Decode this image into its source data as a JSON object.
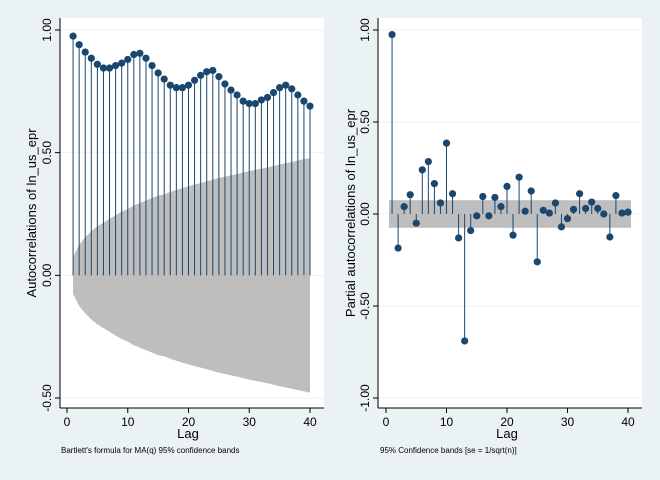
{
  "colors": {
    "background": "#eaf2f3",
    "plot_background": "#ffffff",
    "gridline": "#eaf2f3",
    "confidence_band": "#bebebe",
    "marker": "#1a476f",
    "spike": "#1a476f",
    "axis": "#000000"
  },
  "chart_data": [
    {
      "type": "stem",
      "panel": "left",
      "title": "",
      "xlabel": "Lag",
      "ylabel": "Autocorrelations of ln_us_epr",
      "note": "Bartlett's formula for MA(q) 95% confidence bands",
      "xlim": [
        0,
        41
      ],
      "ylim": [
        -0.53,
        1.04
      ],
      "x_ticks": [
        0,
        10,
        20,
        30,
        40
      ],
      "x_tick_labels": [
        "0",
        "10",
        "20",
        "30",
        "40"
      ],
      "y_ticks": [
        -0.5,
        0,
        0.5,
        1
      ],
      "y_tick_labels": [
        "-0.50",
        "0.00",
        "0.50",
        "1.00"
      ],
      "grid": true,
      "lags": [
        1,
        2,
        3,
        4,
        5,
        6,
        7,
        8,
        9,
        10,
        11,
        12,
        13,
        14,
        15,
        16,
        17,
        18,
        19,
        20,
        21,
        22,
        23,
        24,
        25,
        26,
        27,
        28,
        29,
        30,
        31,
        32,
        33,
        34,
        35,
        36,
        37,
        38,
        39,
        40
      ],
      "values": [
        0.975,
        0.94,
        0.91,
        0.885,
        0.86,
        0.845,
        0.845,
        0.855,
        0.865,
        0.88,
        0.9,
        0.905,
        0.885,
        0.855,
        0.825,
        0.8,
        0.775,
        0.765,
        0.765,
        0.775,
        0.795,
        0.815,
        0.83,
        0.835,
        0.81,
        0.78,
        0.755,
        0.735,
        0.71,
        0.7,
        0.7,
        0.715,
        0.725,
        0.745,
        0.765,
        0.775,
        0.76,
        0.735,
        0.71,
        0.69
      ],
      "confidence_band": {
        "type": "bartlett",
        "lags": [
          1,
          2,
          3,
          4,
          5,
          6,
          7,
          8,
          9,
          10,
          11,
          12,
          13,
          14,
          15,
          16,
          17,
          18,
          19,
          20,
          21,
          22,
          23,
          24,
          25,
          26,
          27,
          28,
          29,
          30,
          31,
          32,
          33,
          34,
          35,
          36,
          37,
          38,
          39,
          40
        ],
        "upper": [
          0.075,
          0.125,
          0.155,
          0.18,
          0.2,
          0.215,
          0.23,
          0.245,
          0.26,
          0.27,
          0.285,
          0.295,
          0.305,
          0.315,
          0.325,
          0.33,
          0.34,
          0.348,
          0.356,
          0.363,
          0.37,
          0.376,
          0.383,
          0.39,
          0.397,
          0.402,
          0.408,
          0.413,
          0.419,
          0.425,
          0.43,
          0.435,
          0.44,
          0.446,
          0.452,
          0.457,
          0.462,
          0.468,
          0.473,
          0.478
        ],
        "lower": [
          -0.075,
          -0.125,
          -0.155,
          -0.18,
          -0.2,
          -0.215,
          -0.23,
          -0.245,
          -0.26,
          -0.27,
          -0.285,
          -0.295,
          -0.305,
          -0.315,
          -0.325,
          -0.33,
          -0.34,
          -0.348,
          -0.356,
          -0.363,
          -0.37,
          -0.376,
          -0.383,
          -0.39,
          -0.397,
          -0.402,
          -0.408,
          -0.413,
          -0.419,
          -0.425,
          -0.43,
          -0.435,
          -0.44,
          -0.446,
          -0.452,
          -0.457,
          -0.462,
          -0.468,
          -0.473,
          -0.478
        ]
      }
    },
    {
      "type": "stem",
      "panel": "right",
      "title": "",
      "xlabel": "Lag",
      "ylabel": "Partial autocorrelations of ln_us_epr",
      "note": "95% Confidence bands [se = 1/sqrt(n)]",
      "xlim": [
        0,
        41
      ],
      "ylim": [
        -1.04,
        1.04
      ],
      "x_ticks": [
        0,
        10,
        20,
        30,
        40
      ],
      "x_tick_labels": [
        "0",
        "10",
        "20",
        "30",
        "40"
      ],
      "y_ticks": [
        -1,
        -0.5,
        0,
        0.5,
        1
      ],
      "y_tick_labels": [
        "-1.00",
        "-0.50",
        "0.00",
        "0.50",
        "1.00"
      ],
      "grid": true,
      "lags": [
        1,
        2,
        3,
        4,
        5,
        6,
        7,
        8,
        9,
        10,
        11,
        12,
        13,
        14,
        15,
        16,
        17,
        18,
        19,
        20,
        21,
        22,
        23,
        24,
        25,
        26,
        27,
        28,
        29,
        30,
        31,
        32,
        33,
        34,
        35,
        36,
        37,
        38,
        39,
        40
      ],
      "values": [
        0.975,
        -0.185,
        0.04,
        0.105,
        -0.05,
        0.24,
        0.285,
        0.165,
        0.06,
        0.385,
        0.11,
        -0.13,
        -0.69,
        -0.09,
        -0.01,
        0.095,
        -0.01,
        0.09,
        0.04,
        0.15,
        -0.115,
        0.2,
        0.015,
        0.125,
        -0.26,
        0.02,
        0.005,
        0.06,
        -0.07,
        -0.025,
        0.025,
        0.11,
        0.03,
        0.065,
        0.03,
        0,
        -0.125,
        0.1,
        0.005,
        0.01
      ],
      "confidence_band": {
        "type": "constant",
        "upper": 0.075,
        "lower": -0.075
      }
    }
  ]
}
